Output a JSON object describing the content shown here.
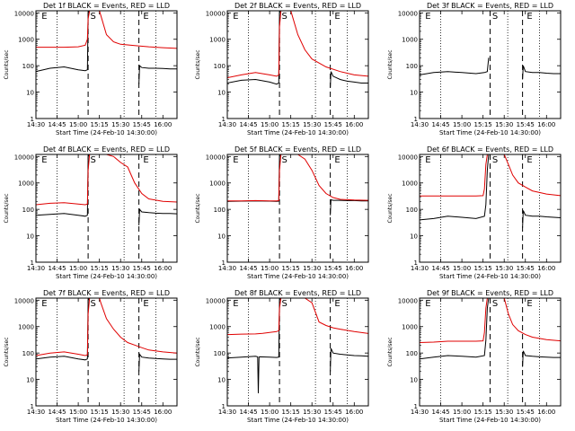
{
  "figure": {
    "xlabel": "Start Time (24-Feb-10 14:30:00)",
    "ylabel": "Counts/sec",
    "x_tick_labels": [
      "14:30",
      "14:45",
      "15:00",
      "15:15",
      "15:30",
      "15:45",
      "16:00"
    ],
    "y_tick_labels": [
      "1",
      "10",
      "100",
      "1000",
      "10000"
    ],
    "series_colors": {
      "events": "#000000",
      "lld": "#e00000"
    },
    "interval_markers": [
      "E",
      "S",
      "E"
    ]
  },
  "chart_data": [
    {
      "type": "line",
      "title": "Det 1f BLACK = Events, RED = LLD",
      "xlabel": "Start Time (24-Feb-10 14:30:00)",
      "ylabel": "Counts/sec",
      "x_units": "minutes after 14:30",
      "xlim": [
        0,
        100
      ],
      "ylim": [
        1,
        12000
      ],
      "yscale": "log",
      "dotted_lines": [
        15,
        62.5,
        85
      ],
      "dashed_lines": [
        37,
        73
      ],
      "series": [
        {
          "color": "#000000",
          "x": [
            0,
            10,
            20,
            30,
            35,
            36.5,
            37,
            38,
            39,
            41,
            43,
            45,
            46,
            72,
            73,
            73.5,
            75,
            80,
            85,
            90,
            95,
            100
          ],
          "y": [
            60,
            80,
            90,
            70,
            65,
            70,
            10000,
            12000,
            12000,
            12000,
            12000,
            12000,
            12000,
            null,
            20,
            100,
            85,
            80,
            80,
            78,
            75,
            75
          ]
        },
        {
          "color": "#e00000",
          "x": [
            0,
            10,
            20,
            30,
            35,
            36.5,
            37,
            38,
            39,
            41,
            43,
            45,
            46,
            50,
            55,
            60,
            70,
            80,
            90,
            100
          ],
          "y": [
            500,
            500,
            500,
            520,
            600,
            1000,
            6000,
            12000,
            12000,
            12000,
            12000,
            12000,
            8000,
            1500,
            800,
            650,
            580,
            520,
            480,
            450
          ]
        }
      ]
    },
    {
      "type": "line",
      "title": "Det 2f BLACK = Events, RED = LLD",
      "xlabel": "Start Time (24-Feb-10 14:30:00)",
      "ylabel": "Counts/sec",
      "x_units": "minutes after 14:30",
      "xlim": [
        0,
        100
      ],
      "ylim": [
        1,
        12000
      ],
      "yscale": "log",
      "dotted_lines": [
        15,
        62.5,
        85
      ],
      "dashed_lines": [
        37,
        73
      ],
      "series": [
        {
          "color": "#000000",
          "x": [
            0,
            10,
            20,
            30,
            35,
            36.5,
            37,
            38,
            39,
            41,
            43,
            45,
            46,
            72,
            73,
            73.5,
            75,
            80,
            85,
            90,
            95,
            100
          ],
          "y": [
            22,
            28,
            30,
            24,
            20,
            22,
            10000,
            12000,
            12000,
            12000,
            12000,
            12000,
            12000,
            null,
            15,
            60,
            40,
            30,
            26,
            24,
            22,
            22
          ]
        },
        {
          "color": "#e00000",
          "x": [
            0,
            10,
            20,
            30,
            35,
            36.5,
            37,
            38,
            39,
            41,
            43,
            45,
            46,
            50,
            55,
            60,
            70,
            80,
            90,
            100
          ],
          "y": [
            35,
            45,
            55,
            45,
            40,
            45,
            3000,
            12000,
            12000,
            12000,
            12000,
            12000,
            8000,
            1500,
            400,
            180,
            90,
            60,
            45,
            40
          ]
        }
      ]
    },
    {
      "type": "line",
      "title": "Det 3f BLACK = Events, RED = LLD",
      "xlabel": "Start Time (24-Feb-10 14:30:00)",
      "ylabel": "Counts/sec",
      "x_units": "minutes after 14:30",
      "xlim": [
        0,
        100
      ],
      "ylim": [
        1,
        12000
      ],
      "yscale": "log",
      "dotted_lines": [
        15,
        62.5,
        85
      ],
      "dashed_lines": [
        50,
        73
      ],
      "series": [
        {
          "color": "#000000",
          "x": [
            0,
            10,
            20,
            30,
            40,
            46,
            48,
            49,
            72,
            73,
            73.5,
            75,
            80,
            85,
            90,
            95,
            100
          ],
          "y": [
            45,
            55,
            60,
            55,
            50,
            55,
            60,
            200,
            null,
            30,
            100,
            60,
            55,
            55,
            52,
            50,
            50
          ]
        }
      ]
    },
    {
      "type": "line",
      "title": "Det 4f BLACK = Events, RED = LLD",
      "xlabel": "Start Time (24-Feb-10 14:30:00)",
      "ylabel": "Counts/sec",
      "x_units": "minutes after 14:30",
      "xlim": [
        0,
        100
      ],
      "ylim": [
        1,
        12000
      ],
      "yscale": "log",
      "dotted_lines": [
        15,
        62.5,
        85
      ],
      "dashed_lines": [
        37,
        73
      ],
      "series": [
        {
          "color": "#000000",
          "x": [
            0,
            10,
            20,
            30,
            35,
            36.5,
            37,
            38,
            39,
            41,
            43,
            45,
            46,
            72,
            73,
            73.5,
            75,
            80,
            85,
            90,
            95,
            100
          ],
          "y": [
            60,
            65,
            70,
            60,
            55,
            60,
            10000,
            12000,
            12000,
            12000,
            12000,
            12000,
            12000,
            null,
            25,
            100,
            80,
            75,
            72,
            70,
            70,
            68
          ]
        },
        {
          "color": "#e00000",
          "x": [
            0,
            10,
            20,
            30,
            35,
            36.5,
            37,
            38,
            39,
            41,
            43,
            45,
            46,
            50,
            55,
            60,
            65,
            70,
            75,
            80,
            90,
            100
          ],
          "y": [
            150,
            170,
            180,
            160,
            150,
            160,
            3000,
            12000,
            12000,
            12000,
            12000,
            12000,
            12000,
            12000,
            10000,
            6000,
            4000,
            1000,
            400,
            250,
            200,
            190
          ]
        }
      ]
    },
    {
      "type": "line",
      "title": "Det 5f BLACK = Events, RED = LLD",
      "xlabel": "Start Time (24-Feb-10 14:30:00)",
      "ylabel": "Counts/sec",
      "x_units": "minutes after 14:30",
      "xlim": [
        0,
        100
      ],
      "ylim": [
        1,
        12000
      ],
      "yscale": "log",
      "dotted_lines": [
        15,
        62.5,
        85
      ],
      "dashed_lines": [
        37,
        73
      ],
      "series": [
        {
          "color": "#000000",
          "x": [
            0,
            10,
            20,
            30,
            35,
            36.5,
            37,
            38,
            39,
            41,
            43,
            45,
            46,
            72,
            73,
            73.5,
            75,
            80,
            85,
            90,
            95,
            100
          ],
          "y": [
            200,
            205,
            210,
            205,
            200,
            205,
            10000,
            12000,
            12000,
            12000,
            12000,
            12000,
            12000,
            null,
            60,
            230,
            220,
            220,
            215,
            215,
            210,
            210
          ]
        },
        {
          "color": "#e00000",
          "x": [
            0,
            10,
            20,
            30,
            35,
            36.5,
            37,
            38,
            39,
            41,
            43,
            45,
            46,
            50,
            55,
            60,
            65,
            70,
            75,
            80,
            90,
            100
          ],
          "y": [
            210,
            210,
            215,
            210,
            210,
            215,
            3000,
            12000,
            12000,
            12000,
            12000,
            12000,
            12000,
            12000,
            8000,
            3000,
            800,
            400,
            280,
            240,
            225,
            220
          ]
        }
      ]
    },
    {
      "type": "line",
      "title": "Det 6f BLACK = Events, RED = LLD",
      "xlabel": "Start Time (24-Feb-10 14:30:00)",
      "ylabel": "Counts/sec",
      "x_units": "minutes after 14:30",
      "xlim": [
        0,
        100
      ],
      "ylim": [
        1,
        12000
      ],
      "yscale": "log",
      "dotted_lines": [
        15,
        62.5,
        85
      ],
      "dashed_lines": [
        50,
        73
      ],
      "series": [
        {
          "color": "#000000",
          "x": [
            0,
            10,
            20,
            30,
            40,
            46,
            47,
            48,
            49,
            50,
            52,
            54,
            56,
            72,
            73,
            73.5,
            75,
            80,
            85,
            90,
            95,
            100
          ],
          "y": [
            40,
            45,
            55,
            50,
            45,
            55,
            150,
            3000,
            12000,
            12000,
            12000,
            12000,
            12000,
            null,
            20,
            90,
            60,
            55,
            55,
            52,
            50,
            48
          ]
        },
        {
          "color": "#e00000",
          "x": [
            0,
            10,
            20,
            30,
            40,
            45,
            46,
            47,
            48,
            49,
            50,
            52,
            54,
            56,
            58,
            60,
            63,
            66,
            70,
            75,
            80,
            90,
            100
          ],
          "y": [
            320,
            320,
            320,
            320,
            320,
            330,
            600,
            5000,
            12000,
            12000,
            12000,
            12000,
            12000,
            12000,
            12000,
            12000,
            5000,
            2000,
            1000,
            700,
            500,
            380,
            330
          ]
        }
      ]
    },
    {
      "type": "line",
      "title": "Det 7f BLACK = Events, RED = LLD",
      "xlabel": "Start Time (24-Feb-10 14:30:00)",
      "ylabel": "Counts/sec",
      "x_units": "minutes after 14:30",
      "xlim": [
        0,
        100
      ],
      "ylim": [
        1,
        12000
      ],
      "yscale": "log",
      "dotted_lines": [
        15,
        62.5,
        85
      ],
      "dashed_lines": [
        37,
        73
      ],
      "series": [
        {
          "color": "#000000",
          "x": [
            0,
            10,
            20,
            30,
            35,
            36.5,
            37,
            38,
            39,
            41,
            43,
            45,
            46,
            72,
            73,
            73.5,
            75,
            80,
            85,
            90,
            95,
            100
          ],
          "y": [
            60,
            70,
            75,
            60,
            55,
            60,
            10000,
            12000,
            12000,
            12000,
            12000,
            12000,
            12000,
            null,
            20,
            90,
            70,
            65,
            62,
            60,
            58,
            58
          ]
        },
        {
          "color": "#e00000",
          "x": [
            0,
            10,
            20,
            30,
            35,
            36.5,
            37,
            38,
            39,
            41,
            43,
            45,
            46,
            50,
            55,
            60,
            65,
            70,
            75,
            80,
            90,
            100
          ],
          "y": [
            80,
            100,
            110,
            90,
            80,
            85,
            3000,
            12000,
            12000,
            12000,
            12000,
            12000,
            8000,
            2000,
            800,
            400,
            250,
            200,
            160,
            130,
            110,
            100
          ]
        }
      ]
    },
    {
      "type": "line",
      "title": "Det 8f BLACK = Events, RED = LLD",
      "xlabel": "Start Time (24-Feb-10 14:30:00)",
      "ylabel": "Counts/sec",
      "x_units": "minutes after 14:30",
      "xlim": [
        0,
        100
      ],
      "ylim": [
        1,
        12000
      ],
      "yscale": "log",
      "dotted_lines": [
        15,
        62.5,
        85
      ],
      "dashed_lines": [
        37,
        73
      ],
      "series": [
        {
          "color": "#000000",
          "x": [
            0,
            10,
            20,
            21.5,
            22,
            22.5,
            23,
            30,
            35,
            36.5,
            37,
            38,
            39,
            41,
            43,
            45,
            46,
            72,
            73,
            73.5,
            75,
            80,
            85,
            90,
            95,
            100
          ],
          "y": [
            65,
            70,
            75,
            72,
            3,
            70,
            72,
            70,
            68,
            70,
            10000,
            12000,
            12000,
            12000,
            12000,
            12000,
            12000,
            null,
            20,
            150,
            100,
            90,
            85,
            80,
            78,
            75
          ]
        },
        {
          "color": "#e00000",
          "x": [
            0,
            10,
            20,
            25,
            30,
            35,
            36.5,
            37,
            38,
            39,
            41,
            43,
            45,
            46,
            50,
            55,
            60,
            65,
            70,
            75,
            80,
            90,
            100
          ],
          "y": [
            500,
            520,
            530,
            560,
            600,
            650,
            700,
            5000,
            12000,
            12000,
            12000,
            12000,
            12000,
            12000,
            12000,
            12000,
            8000,
            1500,
            1100,
            900,
            800,
            650,
            550
          ]
        }
      ]
    },
    {
      "type": "line",
      "title": "Det 9f BLACK = Events, RED = LLD",
      "xlabel": "Start Time (24-Feb-10 14:30:00)",
      "ylabel": "Counts/sec",
      "x_units": "minutes after 14:30",
      "xlim": [
        0,
        100
      ],
      "ylim": [
        1,
        12000
      ],
      "yscale": "log",
      "dotted_lines": [
        15,
        62.5,
        85
      ],
      "dashed_lines": [
        50,
        73
      ],
      "series": [
        {
          "color": "#000000",
          "x": [
            0,
            10,
            20,
            30,
            40,
            46,
            47,
            48,
            49,
            50,
            52,
            54,
            56,
            72,
            73,
            73.5,
            75,
            80,
            85,
            90,
            95,
            100
          ],
          "y": [
            60,
            70,
            80,
            75,
            70,
            80,
            300,
            5000,
            12000,
            12000,
            12000,
            12000,
            12000,
            null,
            30,
            120,
            80,
            75,
            72,
            70,
            68,
            68
          ]
        },
        {
          "color": "#e00000",
          "x": [
            0,
            10,
            20,
            30,
            40,
            45,
            46,
            47,
            48,
            49,
            50,
            52,
            54,
            56,
            58,
            60,
            63,
            66,
            70,
            75,
            80,
            90,
            100
          ],
          "y": [
            250,
            260,
            280,
            280,
            280,
            290,
            600,
            5000,
            12000,
            12000,
            12000,
            12000,
            12000,
            12000,
            12000,
            12000,
            3000,
            1200,
            700,
            500,
            400,
            320,
            290
          ]
        }
      ]
    }
  ]
}
